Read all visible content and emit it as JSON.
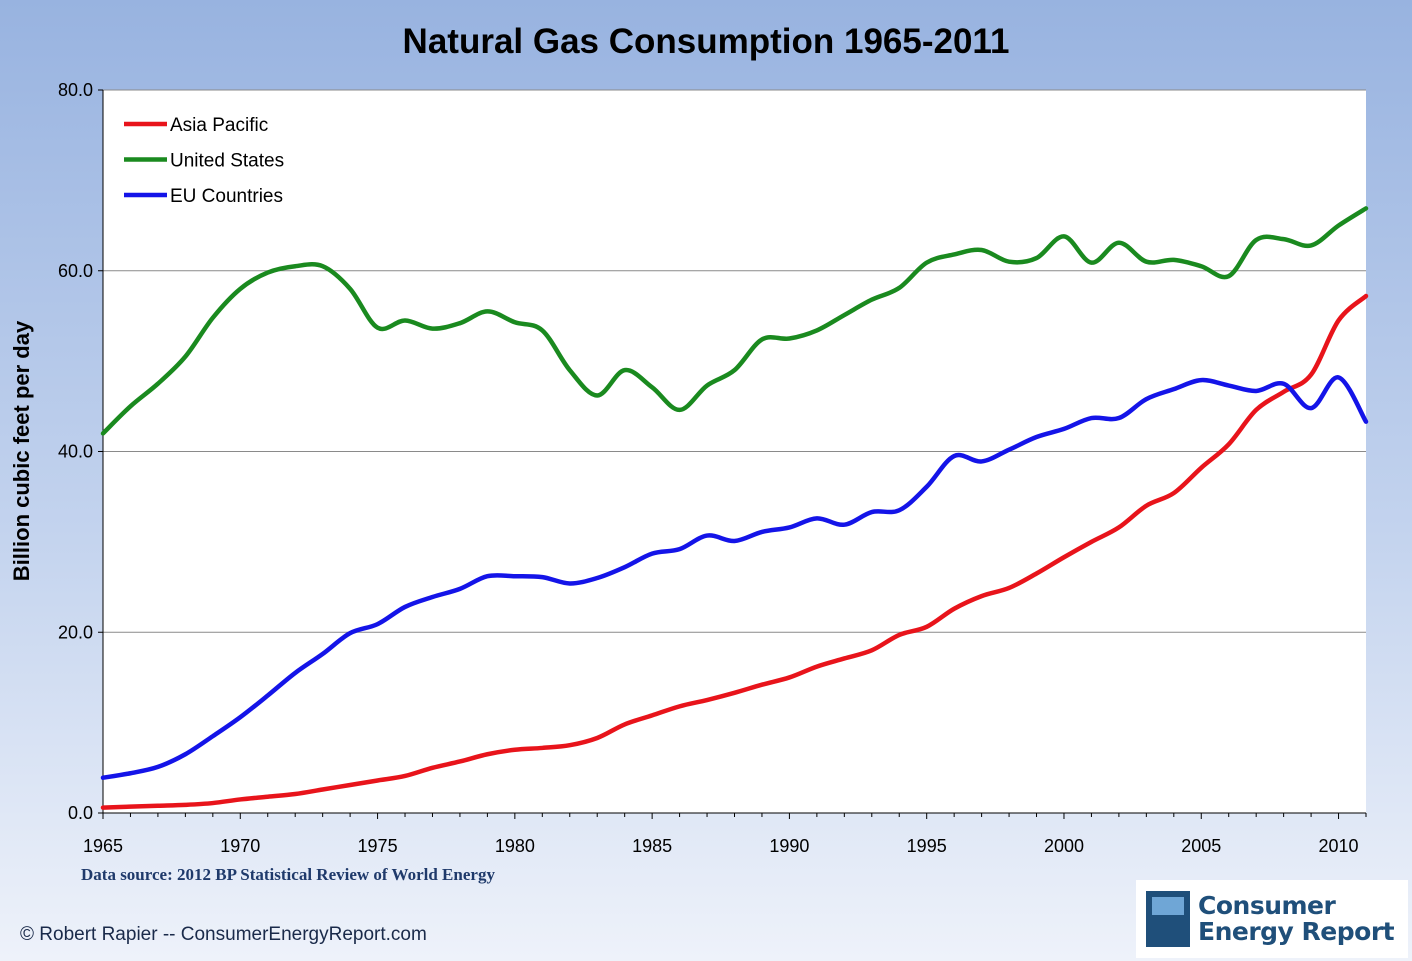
{
  "chart_data": {
    "type": "line",
    "title": "Natural Gas Consumption 1965-2011",
    "ylabel": "Billion cubic feet per day",
    "xlabel": "",
    "ylim": [
      0,
      80
    ],
    "xlim": [
      1965,
      2011
    ],
    "grid": "horizontal",
    "legend_position": "top-left",
    "y_tick_labels": [
      "0.0",
      "20.0",
      "40.0",
      "60.0",
      "80.0"
    ],
    "x_tick_labels": [
      "1965",
      "1970",
      "1975",
      "1980",
      "1985",
      "1990",
      "1995",
      "2000",
      "2005",
      "2010"
    ],
    "x": [
      1965,
      1966,
      1967,
      1968,
      1969,
      1970,
      1971,
      1972,
      1973,
      1974,
      1975,
      1976,
      1977,
      1978,
      1979,
      1980,
      1981,
      1982,
      1983,
      1984,
      1985,
      1986,
      1987,
      1988,
      1989,
      1990,
      1991,
      1992,
      1993,
      1994,
      1995,
      1996,
      1997,
      1998,
      1999,
      2000,
      2001,
      2002,
      2003,
      2004,
      2005,
      2006,
      2007,
      2008,
      2009,
      2010,
      2011
    ],
    "series": [
      {
        "name": "Asia Pacific",
        "color": "#e8141b",
        "values": [
          0.6,
          0.7,
          0.8,
          0.9,
          1.1,
          1.5,
          1.8,
          2.1,
          2.6,
          3.1,
          3.6,
          4.1,
          5.0,
          5.7,
          6.5,
          7.0,
          7.2,
          7.5,
          8.3,
          9.8,
          10.8,
          11.8,
          12.5,
          13.3,
          14.2,
          15.0,
          16.2,
          17.1,
          18.0,
          19.7,
          20.6,
          22.6,
          24.0,
          24.9,
          26.5,
          28.3,
          30.0,
          31.6,
          34.0,
          35.4,
          38.2,
          40.8,
          44.6,
          46.6,
          48.5,
          54.5,
          57.2
        ]
      },
      {
        "name": "United States",
        "color": "#1a8a1f",
        "values": [
          42.0,
          45.0,
          47.5,
          50.5,
          54.8,
          58.0,
          59.8,
          60.5,
          60.5,
          58.0,
          53.7,
          54.5,
          53.6,
          54.2,
          55.5,
          54.3,
          53.4,
          49.0,
          46.2,
          49.0,
          47.1,
          44.6,
          47.3,
          49.0,
          52.4,
          52.5,
          53.4,
          55.1,
          56.8,
          58.1,
          60.9,
          61.8,
          62.3,
          61.0,
          61.4,
          63.8,
          60.9,
          63.1,
          61.0,
          61.2,
          60.5,
          59.4,
          63.4,
          63.5,
          62.8,
          65.0,
          66.9
        ]
      },
      {
        "name": "EU Countries",
        "color": "#1414e8",
        "values": [
          3.9,
          4.4,
          5.1,
          6.5,
          8.5,
          10.6,
          13.0,
          15.5,
          17.6,
          19.9,
          20.9,
          22.8,
          23.9,
          24.8,
          26.2,
          26.2,
          26.1,
          25.4,
          26.0,
          27.2,
          28.7,
          29.2,
          30.7,
          30.1,
          31.1,
          31.6,
          32.6,
          31.9,
          33.3,
          33.5,
          36.1,
          39.5,
          38.9,
          40.2,
          41.6,
          42.5,
          43.7,
          43.7,
          45.8,
          46.9,
          47.9,
          47.3,
          46.7,
          47.5,
          44.8,
          48.2,
          43.3
        ]
      }
    ]
  },
  "footer": {
    "source": "Data source: 2012 BP Statistical Review of World Energy",
    "copyright": "© Robert Rapier -- ConsumerEnergyReport.com",
    "logo_line1": "Consumer",
    "logo_line2": "Energy Report"
  }
}
